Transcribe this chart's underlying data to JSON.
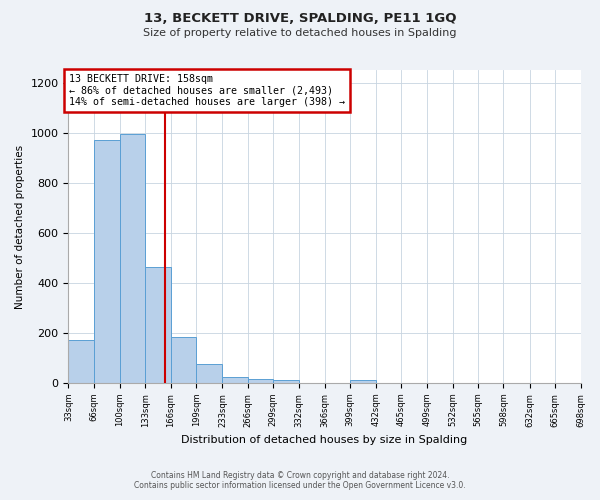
{
  "title": "13, BECKETT DRIVE, SPALDING, PE11 1GQ",
  "subtitle": "Size of property relative to detached houses in Spalding",
  "xlabel": "Distribution of detached houses by size in Spalding",
  "ylabel": "Number of detached properties",
  "bin_edges": [
    33,
    66,
    100,
    133,
    166,
    199,
    233,
    266,
    299,
    332,
    366,
    399,
    432,
    465,
    499,
    532,
    565,
    598,
    632,
    665,
    698
  ],
  "bin_labels": [
    "33sqm",
    "66sqm",
    "100sqm",
    "133sqm",
    "166sqm",
    "199sqm",
    "233sqm",
    "266sqm",
    "299sqm",
    "332sqm",
    "366sqm",
    "399sqm",
    "432sqm",
    "465sqm",
    "499sqm",
    "532sqm",
    "565sqm",
    "598sqm",
    "632sqm",
    "665sqm",
    "698sqm"
  ],
  "bar_heights": [
    170,
    970,
    995,
    465,
    185,
    75,
    25,
    15,
    10,
    0,
    0,
    10,
    0,
    0,
    0,
    0,
    0,
    0,
    0,
    0
  ],
  "bar_color": "#b8d0ea",
  "bar_edgecolor": "#5a9fd4",
  "property_line_x": 158,
  "annotation_text": "13 BECKETT DRIVE: 158sqm\n← 86% of detached houses are smaller (2,493)\n14% of semi-detached houses are larger (398) →",
  "annotation_box_color": "#ffffff",
  "annotation_box_edgecolor": "#cc0000",
  "vline_color": "#cc0000",
  "ylim": [
    0,
    1250
  ],
  "yticks": [
    0,
    200,
    400,
    600,
    800,
    1000,
    1200
  ],
  "footer_line1": "Contains HM Land Registry data © Crown copyright and database right 2024.",
  "footer_line2": "Contains public sector information licensed under the Open Government Licence v3.0.",
  "background_color": "#eef2f7",
  "plot_bg_color": "#ffffff"
}
